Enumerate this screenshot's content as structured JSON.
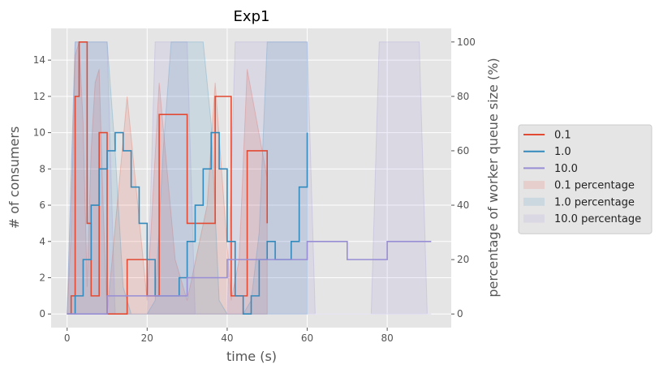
{
  "chart_data": {
    "type": "line",
    "title": "Exp1",
    "xlabel": "time (s)",
    "ylabel": "# of consumers",
    "y2label": "percentage of worker queue size (%)",
    "xlim": [
      -4,
      96
    ],
    "ylim": [
      -0.75,
      15.75
    ],
    "y2lim": [
      -5,
      105
    ],
    "xticks": [
      "0",
      "20",
      "40",
      "60",
      "80"
    ],
    "yticks": [
      "0",
      "2",
      "4",
      "6",
      "8",
      "10",
      "12",
      "14"
    ],
    "y2ticks": [
      "0",
      "20",
      "40",
      "60",
      "80",
      "100"
    ],
    "grid": true,
    "legend_position": "right, outside plot",
    "series": [
      {
        "name": "0.1",
        "color": "#E24A33",
        "x": [
          0,
          1,
          2,
          3,
          4,
          5,
          6,
          7,
          8,
          9,
          10,
          15,
          20,
          23,
          27,
          30,
          35,
          37,
          41,
          43,
          45,
          50
        ],
        "y": [
          0,
          1,
          12,
          15,
          15,
          5,
          1,
          1,
          10,
          10,
          0,
          3,
          1,
          11,
          11,
          5,
          5,
          12,
          1,
          1,
          9,
          5
        ]
      },
      {
        "name": "1.0",
        "color": "#348ABD",
        "x": [
          0,
          2,
          4,
          6,
          8,
          10,
          12,
          14,
          16,
          18,
          20,
          22,
          24,
          26,
          28,
          30,
          32,
          34,
          36,
          38,
          40,
          42,
          44,
          46,
          48,
          50,
          52,
          54,
          56,
          58,
          60
        ],
        "y": [
          0,
          1,
          3,
          6,
          8,
          9,
          10,
          9,
          7,
          5,
          3,
          1,
          1,
          1,
          2,
          4,
          6,
          8,
          10,
          8,
          4,
          1,
          0,
          1,
          3,
          4,
          3,
          3,
          4,
          7,
          10
        ]
      },
      {
        "name": "10.0",
        "color": "#988ED5",
        "x": [
          0,
          8,
          10,
          20,
          30,
          40,
          50,
          60,
          70,
          80,
          91
        ],
        "y": [
          0,
          0,
          1,
          1,
          2,
          3,
          3,
          4,
          3,
          4,
          4
        ]
      }
    ],
    "areas": [
      {
        "name": "0.1 percentage",
        "color": "#E24A33",
        "x": [
          0,
          1,
          2,
          3,
          4,
          5,
          6,
          7,
          8,
          9,
          10,
          15,
          20,
          23,
          27,
          30,
          35,
          37,
          41,
          43,
          45,
          50
        ],
        "y": [
          0,
          30,
          95,
          100,
          70,
          10,
          60,
          85,
          90,
          40,
          0,
          80,
          5,
          85,
          20,
          5,
          40,
          85,
          5,
          20,
          90,
          50
        ]
      },
      {
        "name": "1.0 percentage",
        "color": "#348ABD",
        "x": [
          0,
          2,
          4,
          6,
          8,
          10,
          12,
          14,
          16,
          18,
          20,
          22,
          24,
          26,
          28,
          30,
          32,
          34,
          36,
          38,
          40,
          42,
          44,
          46,
          48,
          50,
          52,
          54,
          56,
          58,
          60
        ],
        "y": [
          0,
          100,
          100,
          100,
          100,
          100,
          60,
          10,
          0,
          0,
          0,
          5,
          60,
          100,
          100,
          100,
          100,
          100,
          70,
          5,
          0,
          0,
          0,
          5,
          30,
          100,
          100,
          100,
          100,
          100,
          100
        ]
      },
      {
        "name": "10.0 percentage",
        "color": "#988ED5",
        "x": [
          0,
          2,
          10,
          12,
          20,
          22,
          30,
          32,
          40,
          42,
          60,
          62,
          70,
          72,
          76,
          78,
          88,
          90,
          91
        ],
        "y": [
          0,
          100,
          100,
          0,
          0,
          100,
          100,
          0,
          0,
          100,
          100,
          0,
          0,
          0,
          0,
          100,
          100,
          0,
          0
        ]
      }
    ]
  }
}
